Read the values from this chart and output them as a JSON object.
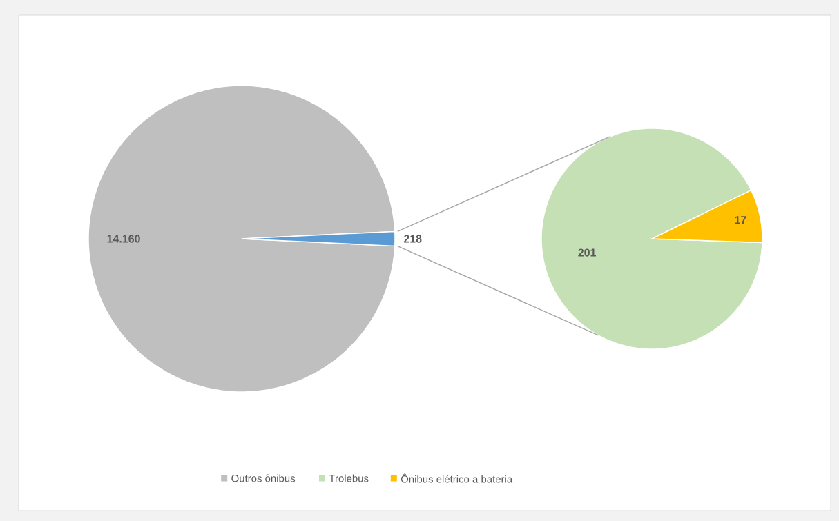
{
  "chart_data": [
    {
      "type": "pie",
      "categories": [
        "Outros ônibus",
        null
      ],
      "values": [
        14160,
        218
      ],
      "colors": [
        "#bfbfbf",
        "#5b9bd5"
      ],
      "value_labels": [
        "14.160",
        "218"
      ],
      "legend": "bottom"
    },
    {
      "type": "pie",
      "categories": [
        "Trolebus",
        "Ônibus elétrico a bateria"
      ],
      "values": [
        201,
        17
      ],
      "colors": [
        "#c5e0b4",
        "#ffc000"
      ],
      "value_labels": [
        "201",
        "17"
      ],
      "legend": "bottom"
    }
  ]
}
